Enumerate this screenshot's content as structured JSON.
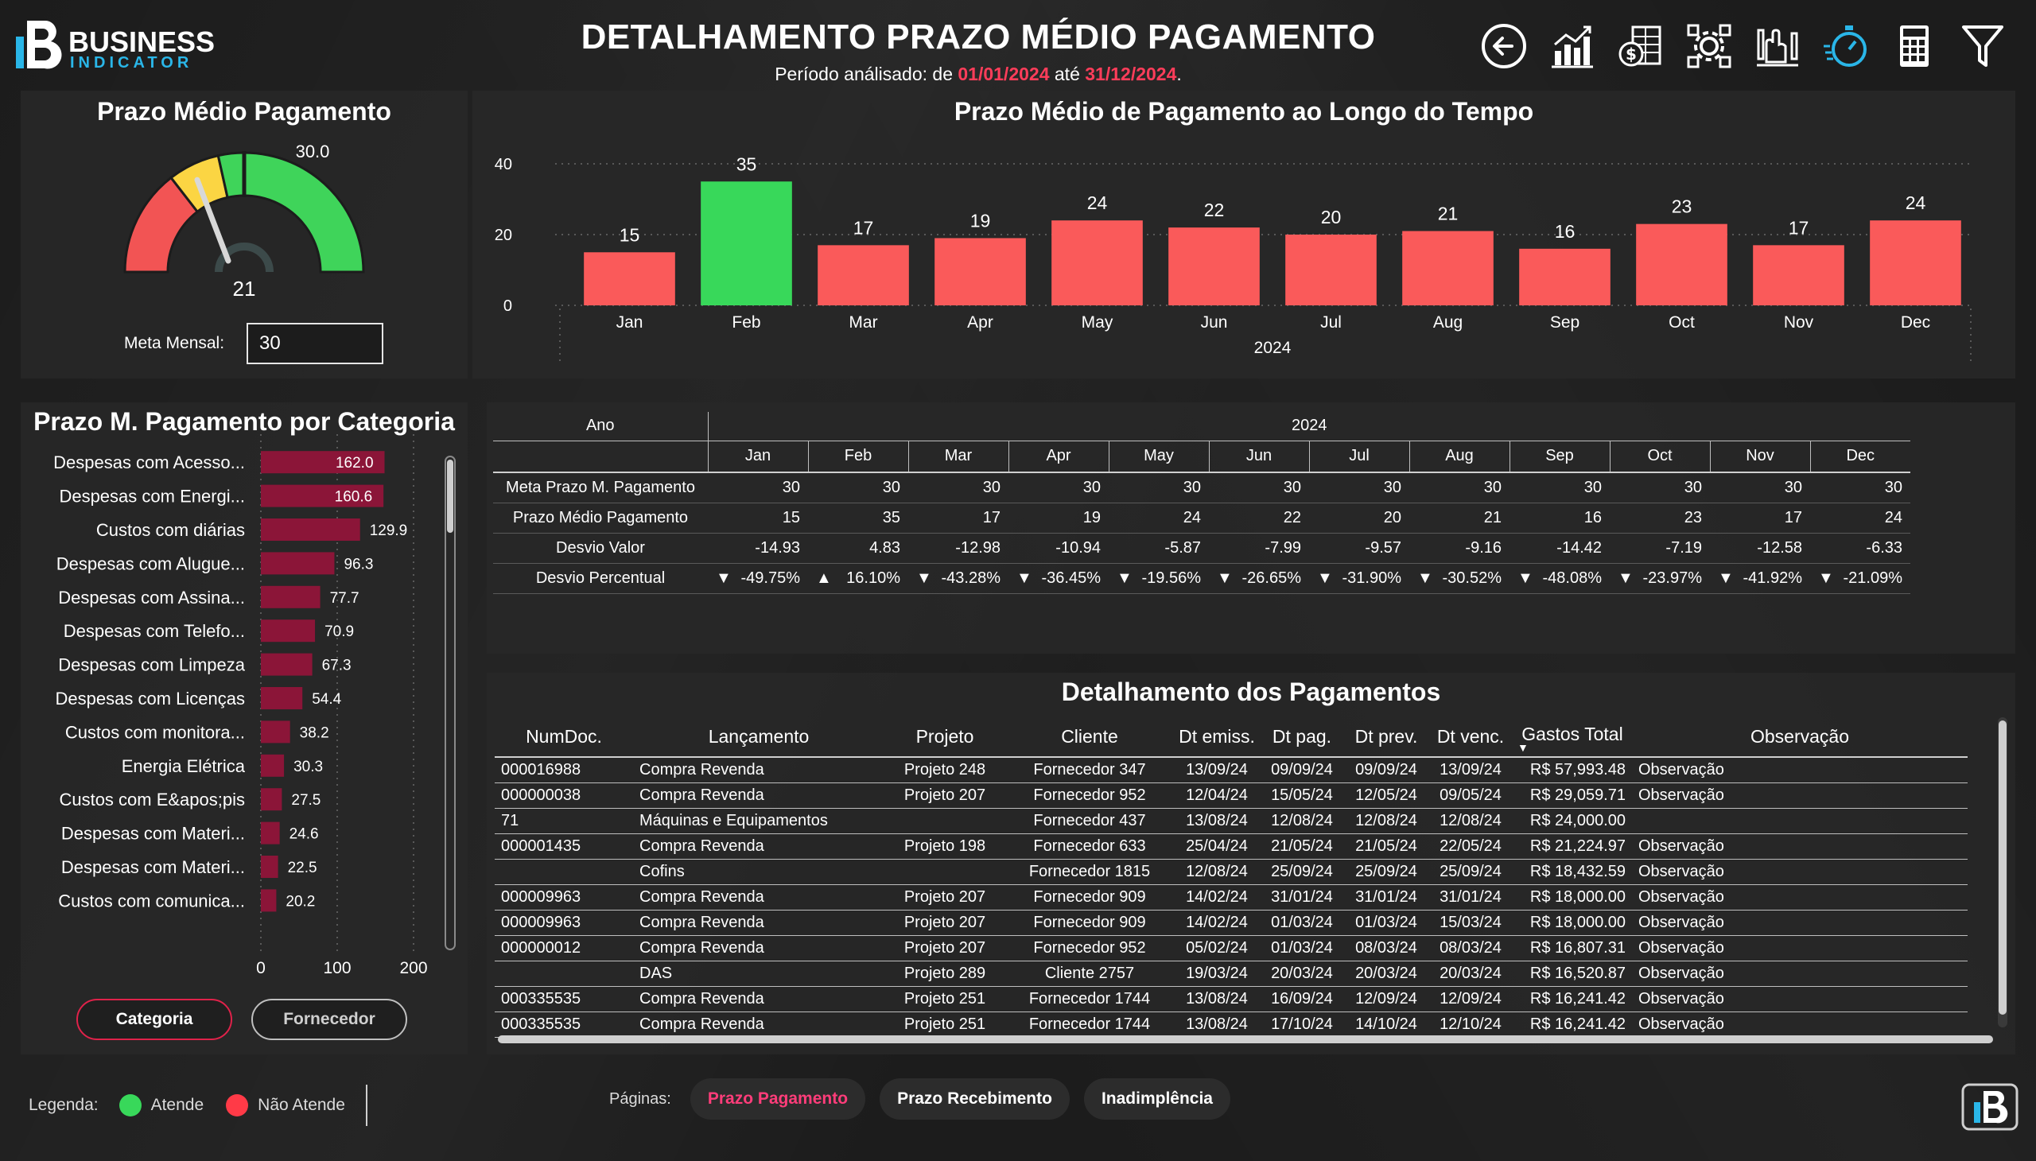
{
  "header": {
    "logo_line1": "BUSINESS",
    "logo_line2": "INDICATOR",
    "title": "DETALHAMENTO PRAZO MÉDIO PAGAMENTO",
    "period_prefix": "Período análisado: de ",
    "period_start": "01/01/2024",
    "period_mid": " até ",
    "period_end": "31/12/2024",
    "period_suffix": ".",
    "toolbar_icons": [
      "back-arrow-icon",
      "bar-chart-icon",
      "money-sheet-icon",
      "gear-network-icon",
      "hand-chart-icon",
      "stopwatch-icon",
      "calculator-icon",
      "filter-icon"
    ]
  },
  "colors": {
    "accent_red": "#ff3d5a",
    "bar_red": "#fa5a5a",
    "bar_green": "#38d85a",
    "gauge_red": "#f25454",
    "gauge_yellow": "#fbd543",
    "gauge_green": "#3fd45a",
    "category_bar": "#8b1538",
    "cyan": "#2ab6e8"
  },
  "gauge": {
    "title": "Prazo Médio Pagamento",
    "value": 21,
    "max_label": "30.0",
    "target": 30,
    "min": 0,
    "max": 60,
    "meta_label": "Meta Mensal:",
    "meta_value": "30"
  },
  "chart_data": [
    {
      "type": "bar",
      "title": "Prazo Médio de Pagamento ao Longo do Tempo",
      "xlabel": "2024",
      "ylabel": "",
      "categories": [
        "Jan",
        "Feb",
        "Mar",
        "Apr",
        "May",
        "Jun",
        "Jul",
        "Aug",
        "Sep",
        "Oct",
        "Nov",
        "Dec"
      ],
      "values": [
        15,
        35,
        17,
        19,
        24,
        22,
        20,
        21,
        16,
        23,
        17,
        24
      ],
      "highlight": [
        "red",
        "green",
        "red",
        "red",
        "red",
        "red",
        "red",
        "red",
        "red",
        "red",
        "red",
        "red"
      ],
      "yticks": [
        0,
        20,
        40
      ],
      "ylim": [
        0,
        40
      ],
      "grid": true
    },
    {
      "type": "bar",
      "orientation": "horizontal",
      "title": "Prazo M. Pagamento por Categoria",
      "categories": [
        "Despesas com Acesso...",
        "Despesas com Energi...",
        "Custos com diárias",
        "Despesas com Alugue...",
        "Despesas com Assina...",
        "Despesas com Telefo...",
        "Despesas com Limpeza",
        "Despesas com Licenças",
        "Custos com monitora...",
        "Energia Elétrica",
        "Custos com E&apos;pis",
        "Despesas com Materi...",
        "Despesas com Materi...",
        "Custos com comunica..."
      ],
      "values": [
        162.0,
        160.6,
        129.9,
        96.3,
        77.7,
        70.9,
        67.3,
        54.4,
        38.2,
        30.3,
        27.5,
        24.6,
        22.5,
        20.2
      ],
      "value_labels": [
        "162.0",
        "160.6",
        "129.9",
        "96.3",
        "77.7",
        "70.9",
        "67.3",
        "54.4",
        "38.2",
        "30.3",
        "27.5",
        "24.6",
        "22.5",
        "20.2"
      ],
      "xticks": [
        "0",
        "100",
        "200"
      ],
      "xlim": [
        0,
        200
      ],
      "grid": true
    }
  ],
  "category_buttons": {
    "active": "Categoria",
    "inactive": "Fornecedor"
  },
  "matrix": {
    "row_header": "Ano",
    "year": "2024",
    "months": [
      "Jan",
      "Feb",
      "Mar",
      "Apr",
      "May",
      "Jun",
      "Jul",
      "Aug",
      "Sep",
      "Oct",
      "Nov",
      "Dec"
    ],
    "rows": [
      {
        "label": "Meta Prazo M. Pagamento",
        "values": [
          "30",
          "30",
          "30",
          "30",
          "30",
          "30",
          "30",
          "30",
          "30",
          "30",
          "30",
          "30"
        ],
        "kind": "plain"
      },
      {
        "label": "Prazo Médio Pagamento",
        "values": [
          "15",
          "35",
          "17",
          "19",
          "24",
          "22",
          "20",
          "21",
          "16",
          "23",
          "17",
          "24"
        ],
        "kind": "plain"
      },
      {
        "label": "Desvio Valor",
        "values": [
          "-14.93",
          "4.83",
          "-12.98",
          "-10.94",
          "-5.87",
          "-7.99",
          "-9.57",
          "-9.16",
          "-14.42",
          "-7.19",
          "-12.58",
          "-6.33"
        ],
        "kind": "signed"
      },
      {
        "label": "Desvio Percentual",
        "values": [
          "-49.75%",
          "16.10%",
          "-43.28%",
          "-36.45%",
          "-19.56%",
          "-26.65%",
          "-31.90%",
          "-30.52%",
          "-48.08%",
          "-23.97%",
          "-41.92%",
          "-21.09%"
        ],
        "kind": "arrow"
      }
    ]
  },
  "details": {
    "title": "Detalhamento dos Pagamentos",
    "columns": [
      "NumDoc.",
      "Lançamento",
      "Projeto",
      "Cliente",
      "Dt emiss.",
      "Dt pag.",
      "Dt prev.",
      "Dt venc.",
      "Gastos Total",
      "Observação"
    ],
    "rows": [
      [
        "000016988",
        "Compra Revenda",
        "Projeto 248",
        "Fornecedor 347",
        "13/09/24",
        "09/09/24",
        "09/09/24",
        "13/09/24",
        "R$ 57,993.48",
        "Observação"
      ],
      [
        "000000038",
        "Compra Revenda",
        "Projeto 207",
        "Fornecedor 952",
        "12/04/24",
        "15/05/24",
        "12/05/24",
        "09/05/24",
        "R$ 29,059.71",
        "Observação"
      ],
      [
        "71",
        "Máquinas e Equipamentos",
        "",
        "Fornecedor 437",
        "13/08/24",
        "12/08/24",
        "12/08/24",
        "12/08/24",
        "R$ 24,000.00",
        ""
      ],
      [
        "000001435",
        "Compra Revenda",
        "Projeto 198",
        "Fornecedor 633",
        "25/04/24",
        "21/05/24",
        "21/05/24",
        "22/05/24",
        "R$ 21,224.97",
        "Observação"
      ],
      [
        "",
        "Cofins",
        "",
        "Fornecedor 1815",
        "12/08/24",
        "25/09/24",
        "25/09/24",
        "25/09/24",
        "R$ 18,432.59",
        "Observação"
      ],
      [
        "000009963",
        "Compra Revenda",
        "Projeto 207",
        "Fornecedor 909",
        "14/02/24",
        "31/01/24",
        "31/01/24",
        "31/01/24",
        "R$ 18,000.00",
        "Observação"
      ],
      [
        "000009963",
        "Compra Revenda",
        "Projeto 207",
        "Fornecedor 909",
        "14/02/24",
        "01/03/24",
        "01/03/24",
        "15/03/24",
        "R$ 18,000.00",
        "Observação"
      ],
      [
        "000000012",
        "Compra Revenda",
        "Projeto 207",
        "Fornecedor 952",
        "05/02/24",
        "01/03/24",
        "08/03/24",
        "08/03/24",
        "R$ 16,807.31",
        "Observação"
      ],
      [
        "",
        "DAS",
        "Projeto 289",
        "Cliente 2757",
        "19/03/24",
        "20/03/24",
        "20/03/24",
        "20/03/24",
        "R$ 16,520.87",
        "Observação"
      ],
      [
        "000335535",
        "Compra Revenda",
        "Projeto 251",
        "Fornecedor 1744",
        "13/08/24",
        "16/09/24",
        "12/09/24",
        "12/09/24",
        "R$ 16,241.42",
        "Observação"
      ],
      [
        "000335535",
        "Compra Revenda",
        "Projeto 251",
        "Fornecedor 1744",
        "13/08/24",
        "17/10/24",
        "14/10/24",
        "12/10/24",
        "R$ 16,241.42",
        "Observação"
      ]
    ]
  },
  "footer": {
    "legend_label": "Legenda:",
    "legend_ok": "Atende",
    "legend_nok": "Não Atende",
    "pages_label": "Páginas:",
    "pages": [
      "Prazo Pagamento",
      "Prazo Recebimento",
      "Inadimplência"
    ],
    "active_page": 0
  }
}
